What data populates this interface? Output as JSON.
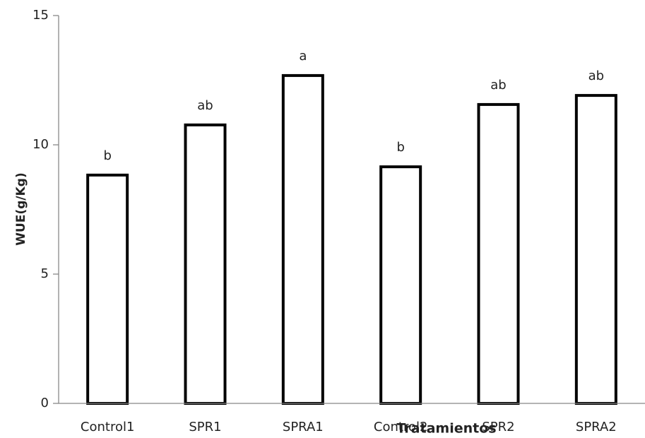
{
  "chart_data": {
    "type": "bar",
    "categories": [
      "Control1",
      "SPR1",
      "SPRA1",
      "Control2",
      "SPR2",
      "SPRA2"
    ],
    "values": [
      8.83,
      10.77,
      12.68,
      9.15,
      11.56,
      11.91
    ],
    "annotations": [
      "b",
      "ab",
      "a",
      "b",
      "ab",
      "ab"
    ],
    "color": "#ffffff",
    "edge_color": "#000000",
    "ylim": [
      0,
      15
    ],
    "yticks": [
      0,
      5,
      10,
      15
    ],
    "x_label": "Tratamientos",
    "y_label": "WUE(g/Kg)",
    "grid": false
  }
}
